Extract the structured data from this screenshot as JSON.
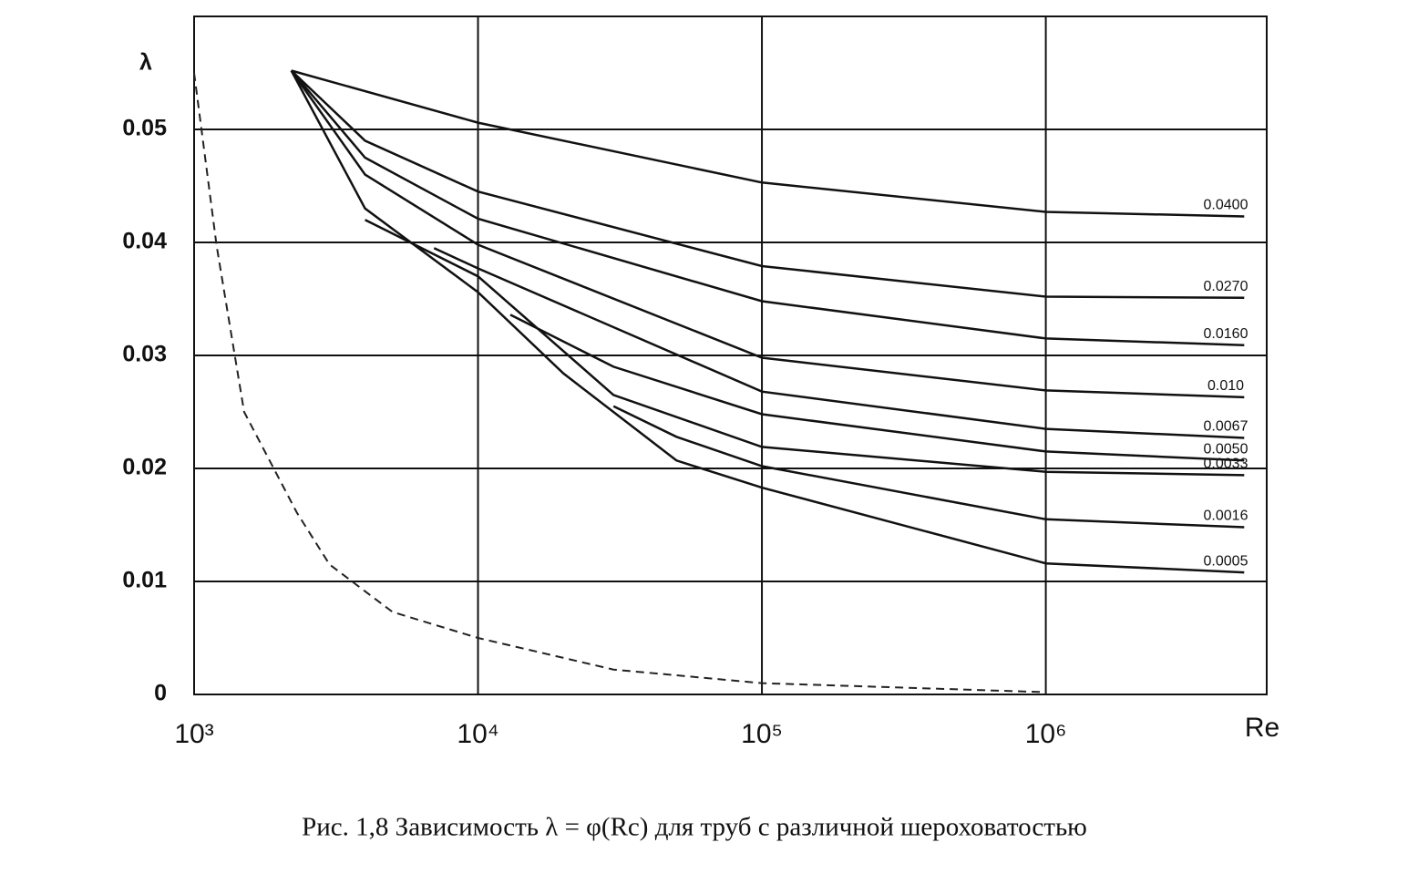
{
  "chart_data": {
    "type": "line",
    "title": "Рис. 1,8 Зависимость λ = φ(Rc) для труб с различной шероховатостью",
    "x_label": "Re",
    "y_label": "λ",
    "xscale": "log",
    "xlim": [
      1000,
      6000000
    ],
    "xticks": [
      {
        "value": 1000,
        "label": "10³"
      },
      {
        "value": 10000,
        "label": "10⁴"
      },
      {
        "value": 100000,
        "label": "10⁵"
      },
      {
        "value": 1000000,
        "label": "10⁶"
      }
    ],
    "ylim": [
      0,
      0.06
    ],
    "yticks": [
      0,
      0.01,
      0.02,
      0.03,
      0.04,
      0.05
    ],
    "grid": true,
    "series": [
      {
        "name": "0.0400",
        "color": "#111111",
        "x": [
          2200,
          10000,
          100000,
          1000000,
          5000000
        ],
        "values": [
          0.0552,
          0.0506,
          0.0453,
          0.0427,
          0.0423
        ]
      },
      {
        "name": "0.0270",
        "color": "#111111",
        "x": [
          2200,
          4000,
          10000,
          100000,
          1000000,
          5000000
        ],
        "values": [
          0.0552,
          0.049,
          0.0445,
          0.0379,
          0.0352,
          0.0351
        ]
      },
      {
        "name": "0.0160",
        "color": "#111111",
        "x": [
          2200,
          4000,
          10000,
          100000,
          1000000,
          5000000
        ],
        "values": [
          0.0552,
          0.0475,
          0.0421,
          0.0348,
          0.0315,
          0.0309
        ]
      },
      {
        "name": "0.010",
        "color": "#111111",
        "x": [
          2200,
          4000,
          10000,
          100000,
          1000000,
          5000000
        ],
        "values": [
          0.0552,
          0.046,
          0.0398,
          0.0298,
          0.0269,
          0.0263
        ]
      },
      {
        "name": "0.0067",
        "color": "#111111",
        "x": [
          7000,
          10000,
          100000,
          1000000,
          5000000
        ],
        "values": [
          0.0395,
          0.0377,
          0.0268,
          0.0235,
          0.0227
        ]
      },
      {
        "name": "0.0050",
        "color": "#111111",
        "x": [
          13000,
          30000,
          100000,
          1000000,
          5000000
        ],
        "values": [
          0.0336,
          0.029,
          0.0248,
          0.0215,
          0.0207
        ]
      },
      {
        "name": "0.0033",
        "color": "#111111",
        "x": [
          4000,
          10000,
          30000,
          100000,
          1000000,
          5000000
        ],
        "values": [
          0.042,
          0.037,
          0.0265,
          0.0219,
          0.0197,
          0.0194
        ]
      },
      {
        "name": "0.0016",
        "color": "#111111",
        "x": [
          30000,
          50000,
          100000,
          1000000,
          5000000
        ],
        "values": [
          0.0255,
          0.0228,
          0.0202,
          0.0155,
          0.0148
        ]
      },
      {
        "name": "0.0005",
        "color": "#111111",
        "x": [
          2200,
          4000,
          10000,
          20000,
          50000,
          100000,
          1000000,
          5000000
        ],
        "values": [
          0.0552,
          0.043,
          0.0356,
          0.0284,
          0.0207,
          0.0183,
          0.0116,
          0.0108
        ]
      },
      {
        "color": "#222222",
        "dashed": true,
        "x": [
          1000,
          1200,
          1500,
          2300,
          3000,
          5000,
          10000,
          30000,
          100000,
          1000000
        ],
        "values": [
          0.055,
          0.0397,
          0.025,
          0.0161,
          0.0115,
          0.0073,
          0.005,
          0.0022,
          0.001,
          0.0002
        ]
      }
    ]
  }
}
